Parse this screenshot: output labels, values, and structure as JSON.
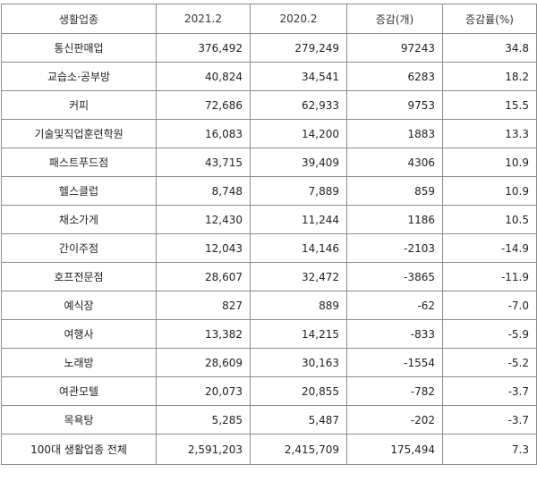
{
  "table": {
    "headers": [
      "생활업종",
      "2021.2",
      "2020.2",
      "증감(개)",
      "증감률(%)"
    ],
    "rows": [
      [
        "통신판매업",
        "376,492",
        "279,249",
        "97243",
        "34.8"
      ],
      [
        "교습소·공부방",
        "40,824",
        "34,541",
        "6283",
        "18.2"
      ],
      [
        "커피",
        "72,686",
        "62,933",
        "9753",
        "15.5"
      ],
      [
        "기술및직업훈련학원",
        "16,083",
        "14,200",
        "1883",
        "13.3"
      ],
      [
        "패스트푸드점",
        "43,715",
        "39,409",
        "4306",
        "10.9"
      ],
      [
        "헬스클럽",
        "8,748",
        "7,889",
        "859",
        "10.9"
      ],
      [
        "채소가게",
        "12,430",
        "11,244",
        "1186",
        "10.5"
      ],
      [
        "간이주점",
        "12,043",
        "14,146",
        "-2103",
        "-14.9"
      ],
      [
        "호프전문점",
        "28,607",
        "32,472",
        "-3865",
        "-11.9"
      ],
      [
        "예식장",
        "827",
        "889",
        "-62",
        "-7.0"
      ],
      [
        "여행사",
        "13,382",
        "14,215",
        "-833",
        "-5.9"
      ],
      [
        "노래방",
        "28,609",
        "30,163",
        "-1554",
        "-5.2"
      ],
      [
        "여관모텔",
        "20,073",
        "20,855",
        "-782",
        "-3.7"
      ],
      [
        "목욕탕",
        "5,285",
        "5,487",
        "-202",
        "-3.7"
      ],
      [
        "100대 생활업종 전체",
        "2,591,203",
        "2,415,709",
        "175,494",
        "7.3"
      ]
    ]
  }
}
